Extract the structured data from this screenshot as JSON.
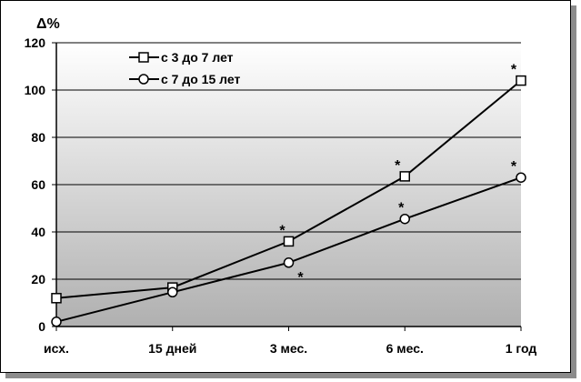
{
  "chart_data": {
    "type": "line",
    "title": "Δ%",
    "xlabel": "",
    "ylabel": "",
    "categories": [
      "исх.",
      "15 дней",
      "3 мес.",
      "6 мес.",
      "1 год"
    ],
    "ylim": [
      0,
      120
    ],
    "yticks": [
      0,
      20,
      40,
      60,
      80,
      100,
      120
    ],
    "grid": true,
    "legend_position": "top-left",
    "series": [
      {
        "name": "с 3 до 7 лет",
        "marker": "square",
        "values": [
          12,
          16.5,
          36,
          63.5,
          104
        ],
        "significance": [
          "",
          "",
          "*",
          "*",
          "*"
        ]
      },
      {
        "name": "с 7 до 15 лет",
        "marker": "circle",
        "values": [
          2,
          14.5,
          27,
          45.5,
          63
        ],
        "significance": [
          "",
          "",
          "*",
          "*",
          "*"
        ]
      }
    ],
    "colors": {
      "line": "#000000",
      "marker_fill": "#ffffff",
      "plot_gradient_top": "#ffffff",
      "plot_gradient_bottom": "#b0b0b0"
    }
  }
}
